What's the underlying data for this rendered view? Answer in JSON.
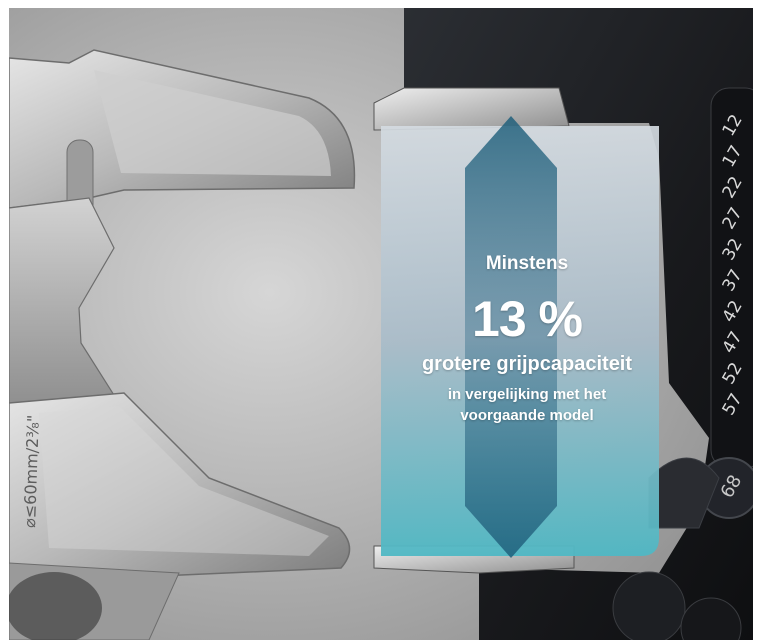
{
  "headline": {
    "intro": "Minstens",
    "percentage": "13 %",
    "main": "grotere grijpcapaciteit",
    "line1": "in vergelijking met het",
    "line2": "voorgaande model"
  },
  "old_wrench": {
    "engraving": "⌀≤60mm/2⅜\""
  },
  "new_wrench": {
    "scale_marks": [
      "12",
      "17",
      "22",
      "27",
      "32",
      "37",
      "42",
      "47",
      "52",
      "57"
    ],
    "size_badge": "68"
  },
  "colors": {
    "background_gradient": [
      "#8f8f8f",
      "#d6d6d6"
    ],
    "steel_light": "#dcdcdc",
    "steel_dark": "#8a8a8a",
    "dark_body": "#1a1c1f",
    "overlay_top": "#c9d3db",
    "overlay_bottom": "#4fb8c4",
    "arrow": "#1f5f7b"
  }
}
